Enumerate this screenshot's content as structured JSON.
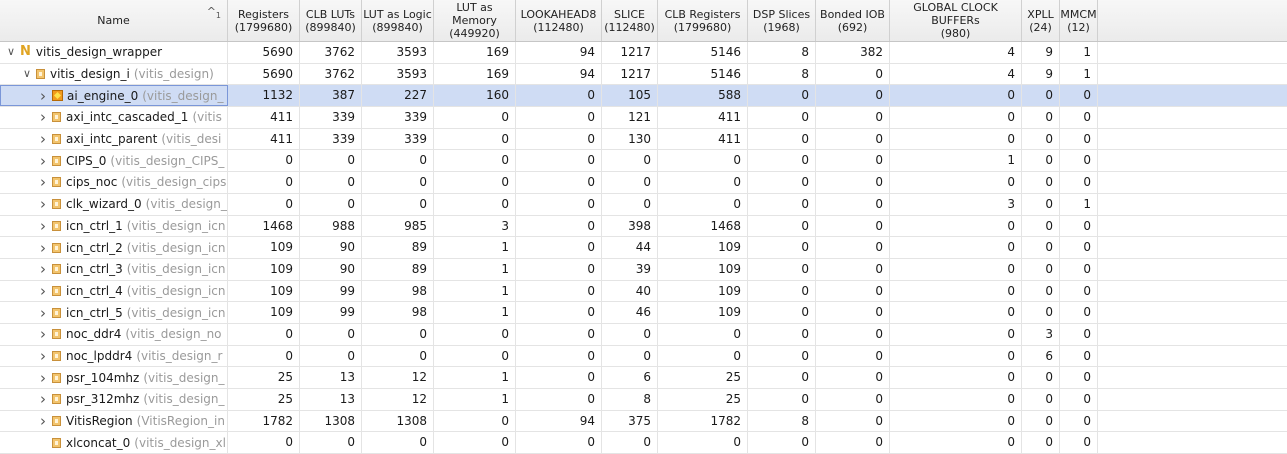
{
  "columns": [
    {
      "label": "Name",
      "sub": ""
    },
    {
      "label": "Registers",
      "sub": "(1799680)"
    },
    {
      "label": "CLB LUTs",
      "sub": "(899840)"
    },
    {
      "label": "LUT as Logic",
      "sub": "(899840)"
    },
    {
      "label": "LUT as Memory",
      "sub": "(449920)"
    },
    {
      "label": "LOOKAHEAD8",
      "sub": "(112480)"
    },
    {
      "label": "SLICE",
      "sub": "(112480)"
    },
    {
      "label": "CLB Registers",
      "sub": "(1799680)"
    },
    {
      "label": "DSP Slices",
      "sub": "(1968)"
    },
    {
      "label": "Bonded IOB",
      "sub": "(692)"
    },
    {
      "label": "GLOBAL CLOCK BUFFERs",
      "sub": "(980)"
    },
    {
      "label": "XPLL",
      "sub": "(24)"
    },
    {
      "label": "MMCM",
      "sub": "(12)"
    }
  ],
  "sort_indicator": "^",
  "sort_index": "1",
  "rows": [
    {
      "name": "vitis_design_wrapper",
      "module": "",
      "icon": "top",
      "arrow": "down",
      "level": 0,
      "selected": false,
      "values": [
        "5690",
        "3762",
        "3593",
        "169",
        "94",
        "1217",
        "5146",
        "8",
        "382",
        "4",
        "9",
        "1"
      ]
    },
    {
      "name": "vitis_design_i",
      "module": "(vitis_design)",
      "icon": "inst",
      "arrow": "down",
      "level": 1,
      "selected": false,
      "values": [
        "5690",
        "3762",
        "3593",
        "169",
        "94",
        "1217",
        "5146",
        "8",
        "0",
        "4",
        "9",
        "1"
      ]
    },
    {
      "name": "ai_engine_0",
      "module": "(vitis_design_",
      "icon": "ai",
      "arrow": "right",
      "level": 2,
      "selected": true,
      "values": [
        "1132",
        "387",
        "227",
        "160",
        "0",
        "105",
        "588",
        "0",
        "0",
        "0",
        "0",
        "0"
      ]
    },
    {
      "name": "axi_intc_cascaded_1",
      "module": "(vitis",
      "icon": "inst",
      "arrow": "right",
      "level": 2,
      "selected": false,
      "values": [
        "411",
        "339",
        "339",
        "0",
        "0",
        "121",
        "411",
        "0",
        "0",
        "0",
        "0",
        "0"
      ]
    },
    {
      "name": "axi_intc_parent",
      "module": "(vitis_desi",
      "icon": "inst",
      "arrow": "right",
      "level": 2,
      "selected": false,
      "values": [
        "411",
        "339",
        "339",
        "0",
        "0",
        "130",
        "411",
        "0",
        "0",
        "0",
        "0",
        "0"
      ]
    },
    {
      "name": "CIPS_0",
      "module": "(vitis_design_CIPS_",
      "icon": "inst",
      "arrow": "right",
      "level": 2,
      "selected": false,
      "values": [
        "0",
        "0",
        "0",
        "0",
        "0",
        "0",
        "0",
        "0",
        "0",
        "1",
        "0",
        "0"
      ]
    },
    {
      "name": "cips_noc",
      "module": "(vitis_design_cips",
      "icon": "inst",
      "arrow": "right",
      "level": 2,
      "selected": false,
      "values": [
        "0",
        "0",
        "0",
        "0",
        "0",
        "0",
        "0",
        "0",
        "0",
        "0",
        "0",
        "0"
      ]
    },
    {
      "name": "clk_wizard_0",
      "module": "(vitis_design_",
      "icon": "inst",
      "arrow": "right",
      "level": 2,
      "selected": false,
      "values": [
        "0",
        "0",
        "0",
        "0",
        "0",
        "0",
        "0",
        "0",
        "0",
        "3",
        "0",
        "1"
      ]
    },
    {
      "name": "icn_ctrl_1",
      "module": "(vitis_design_icn",
      "icon": "inst",
      "arrow": "right",
      "level": 2,
      "selected": false,
      "values": [
        "1468",
        "988",
        "985",
        "3",
        "0",
        "398",
        "1468",
        "0",
        "0",
        "0",
        "0",
        "0"
      ]
    },
    {
      "name": "icn_ctrl_2",
      "module": "(vitis_design_icn",
      "icon": "inst",
      "arrow": "right",
      "level": 2,
      "selected": false,
      "values": [
        "109",
        "90",
        "89",
        "1",
        "0",
        "44",
        "109",
        "0",
        "0",
        "0",
        "0",
        "0"
      ]
    },
    {
      "name": "icn_ctrl_3",
      "module": "(vitis_design_icn",
      "icon": "inst",
      "arrow": "right",
      "level": 2,
      "selected": false,
      "values": [
        "109",
        "90",
        "89",
        "1",
        "0",
        "39",
        "109",
        "0",
        "0",
        "0",
        "0",
        "0"
      ]
    },
    {
      "name": "icn_ctrl_4",
      "module": "(vitis_design_icn",
      "icon": "inst",
      "arrow": "right",
      "level": 2,
      "selected": false,
      "values": [
        "109",
        "99",
        "98",
        "1",
        "0",
        "40",
        "109",
        "0",
        "0",
        "0",
        "0",
        "0"
      ]
    },
    {
      "name": "icn_ctrl_5",
      "module": "(vitis_design_icn",
      "icon": "inst",
      "arrow": "right",
      "level": 2,
      "selected": false,
      "values": [
        "109",
        "99",
        "98",
        "1",
        "0",
        "46",
        "109",
        "0",
        "0",
        "0",
        "0",
        "0"
      ]
    },
    {
      "name": "noc_ddr4",
      "module": "(vitis_design_no",
      "icon": "inst",
      "arrow": "right",
      "level": 2,
      "selected": false,
      "values": [
        "0",
        "0",
        "0",
        "0",
        "0",
        "0",
        "0",
        "0",
        "0",
        "0",
        "3",
        "0"
      ]
    },
    {
      "name": "noc_lpddr4",
      "module": "(vitis_design_r",
      "icon": "inst",
      "arrow": "right",
      "level": 2,
      "selected": false,
      "values": [
        "0",
        "0",
        "0",
        "0",
        "0",
        "0",
        "0",
        "0",
        "0",
        "0",
        "6",
        "0"
      ]
    },
    {
      "name": "psr_104mhz",
      "module": "(vitis_design_",
      "icon": "inst",
      "arrow": "right",
      "level": 2,
      "selected": false,
      "values": [
        "25",
        "13",
        "12",
        "1",
        "0",
        "6",
        "25",
        "0",
        "0",
        "0",
        "0",
        "0"
      ]
    },
    {
      "name": "psr_312mhz",
      "module": "(vitis_design_",
      "icon": "inst",
      "arrow": "right",
      "level": 2,
      "selected": false,
      "values": [
        "25",
        "13",
        "12",
        "1",
        "0",
        "8",
        "25",
        "0",
        "0",
        "0",
        "0",
        "0"
      ]
    },
    {
      "name": "VitisRegion",
      "module": "(VitisRegion_in",
      "icon": "inst",
      "arrow": "right",
      "level": 2,
      "selected": false,
      "values": [
        "1782",
        "1308",
        "1308",
        "0",
        "94",
        "375",
        "1782",
        "8",
        "0",
        "0",
        "0",
        "0"
      ]
    },
    {
      "name": "xlconcat_0",
      "module": "(vitis_design_xl",
      "icon": "inst",
      "arrow": "none",
      "level": 2,
      "selected": false,
      "values": [
        "0",
        "0",
        "0",
        "0",
        "0",
        "0",
        "0",
        "0",
        "0",
        "0",
        "0",
        "0"
      ]
    }
  ]
}
